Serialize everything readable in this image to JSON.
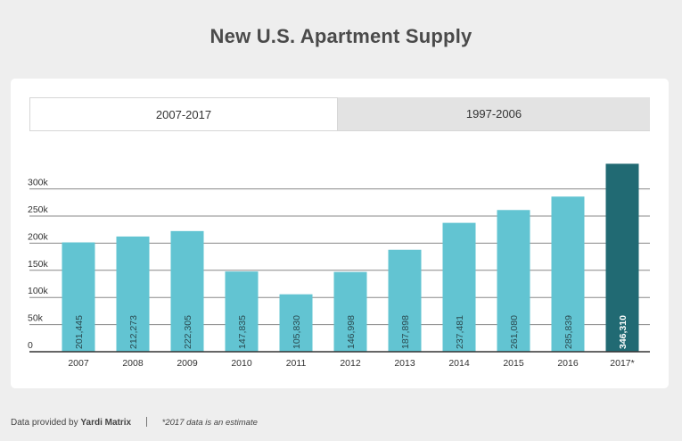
{
  "title": "New U.S. Apartment Supply",
  "tabs": [
    {
      "label": "2007-2017",
      "active": true
    },
    {
      "label": "1997-2006",
      "active": false
    }
  ],
  "footer": {
    "prefix": "Data provided by",
    "brand": "Yardi Matrix",
    "note": "*2017 data is an estimate"
  },
  "colors": {
    "bar": "#62c4d2",
    "highlight": "#216a73",
    "grid": "#888888",
    "axis": "#333333"
  },
  "chart_data": {
    "type": "bar",
    "categories": [
      "2007",
      "2008",
      "2009",
      "2010",
      "2011",
      "2012",
      "2013",
      "2014",
      "2015",
      "2016",
      "2017*"
    ],
    "values": [
      201445,
      212273,
      222305,
      147835,
      105830,
      146998,
      187898,
      237481,
      261080,
      285839,
      346310
    ],
    "value_labels": [
      "201,445",
      "212,273",
      "222,305",
      "147,835",
      "105,830",
      "146,998",
      "187,898",
      "237,481",
      "261,080",
      "285,839",
      "346,310"
    ],
    "highlight_index": 10,
    "yticks": [
      0,
      50000,
      100000,
      150000,
      200000,
      250000,
      300000
    ],
    "ytick_labels": [
      "0",
      "50k",
      "100k",
      "150k",
      "200k",
      "250k",
      "300k"
    ],
    "ylim": [
      0,
      300000
    ],
    "grid": true,
    "xlabel": "",
    "ylabel": ""
  }
}
